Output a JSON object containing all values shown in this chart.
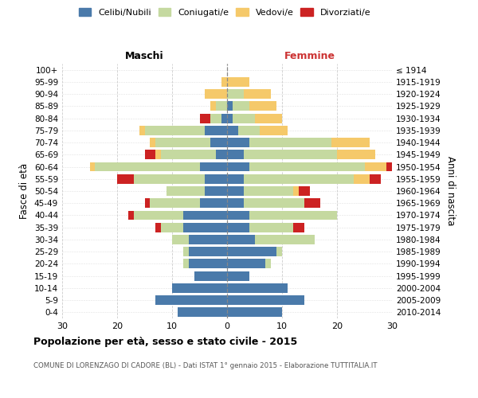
{
  "age_groups": [
    "0-4",
    "5-9",
    "10-14",
    "15-19",
    "20-24",
    "25-29",
    "30-34",
    "35-39",
    "40-44",
    "45-49",
    "50-54",
    "55-59",
    "60-64",
    "65-69",
    "70-74",
    "75-79",
    "80-84",
    "85-89",
    "90-94",
    "95-99",
    "100+"
  ],
  "birth_years": [
    "2010-2014",
    "2005-2009",
    "2000-2004",
    "1995-1999",
    "1990-1994",
    "1985-1989",
    "1980-1984",
    "1975-1979",
    "1970-1974",
    "1965-1969",
    "1960-1964",
    "1955-1959",
    "1950-1954",
    "1945-1949",
    "1940-1944",
    "1935-1939",
    "1930-1934",
    "1925-1929",
    "1920-1924",
    "1915-1919",
    "≤ 1914"
  ],
  "colors": {
    "celibi": "#4a7aaa",
    "coniugati": "#c5d9a0",
    "vedovi": "#f5c96a",
    "divorziati": "#cc2222"
  },
  "maschi": {
    "celibi": [
      9,
      13,
      10,
      6,
      7,
      7,
      7,
      8,
      8,
      5,
      4,
      4,
      5,
      2,
      3,
      4,
      1,
      0,
      0,
      0,
      0
    ],
    "coniugati": [
      0,
      0,
      0,
      0,
      1,
      1,
      3,
      4,
      9,
      9,
      7,
      13,
      19,
      10,
      10,
      11,
      2,
      2,
      0,
      0,
      0
    ],
    "vedovi": [
      0,
      0,
      0,
      0,
      0,
      0,
      0,
      0,
      0,
      0,
      0,
      0,
      1,
      1,
      1,
      1,
      0,
      1,
      4,
      1,
      0
    ],
    "divorziati": [
      0,
      0,
      0,
      0,
      0,
      0,
      0,
      1,
      1,
      1,
      0,
      3,
      0,
      2,
      0,
      0,
      2,
      0,
      0,
      0,
      0
    ]
  },
  "femmine": {
    "celibi": [
      10,
      14,
      11,
      4,
      7,
      9,
      5,
      4,
      4,
      3,
      3,
      3,
      4,
      3,
      4,
      2,
      1,
      1,
      0,
      0,
      0
    ],
    "coniugati": [
      0,
      0,
      0,
      0,
      1,
      1,
      11,
      8,
      16,
      11,
      9,
      20,
      21,
      17,
      15,
      4,
      4,
      3,
      3,
      0,
      0
    ],
    "vedovi": [
      0,
      0,
      0,
      0,
      0,
      0,
      0,
      0,
      0,
      0,
      1,
      3,
      4,
      7,
      7,
      5,
      5,
      5,
      5,
      4,
      0
    ],
    "divorziati": [
      0,
      0,
      0,
      0,
      0,
      0,
      0,
      2,
      0,
      3,
      2,
      2,
      2,
      0,
      0,
      0,
      0,
      0,
      0,
      0,
      0
    ]
  },
  "xlim": 30,
  "title": "Popolazione per età, sesso e stato civile - 2015",
  "subtitle": "COMUNE DI LORENZAGO DI CADORE (BL) - Dati ISTAT 1° gennaio 2015 - Elaborazione TUTTITALIA.IT",
  "legend_labels": [
    "Celibi/Nubili",
    "Coniugati/e",
    "Vedovi/e",
    "Divorziati/e"
  ],
  "ylabel_left": "Fasce di età",
  "ylabel_right": "Anni di nascita",
  "label_maschi": "Maschi",
  "label_femmine": "Femmine",
  "femmine_color": "#cc3333"
}
